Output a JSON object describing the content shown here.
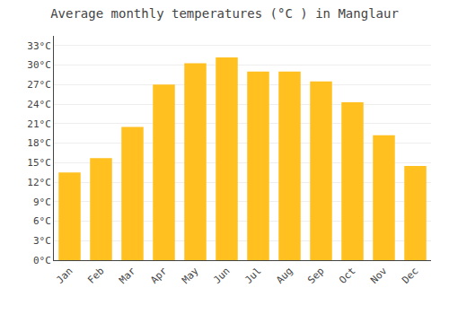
{
  "chart_data": {
    "type": "bar",
    "title": "Average monthly temperatures (°C ) in Manglaur",
    "categories": [
      "Jan",
      "Feb",
      "Mar",
      "Apr",
      "May",
      "Jun",
      "Jul",
      "Aug",
      "Sep",
      "Oct",
      "Nov",
      "Dec"
    ],
    "values": [
      13.5,
      15.7,
      20.5,
      27.0,
      30.3,
      31.2,
      29.0,
      29.0,
      27.5,
      24.3,
      19.2,
      14.5
    ],
    "color": "#FFC020",
    "ylim": [
      0,
      34.5
    ],
    "yticks": [
      {
        "value": 0,
        "label": "0°C"
      },
      {
        "value": 3,
        "label": "3°C"
      },
      {
        "value": 6,
        "label": "6°C"
      },
      {
        "value": 9,
        "label": "9°C"
      },
      {
        "value": 12,
        "label": "12°C"
      },
      {
        "value": 15,
        "label": "15°C"
      },
      {
        "value": 18,
        "label": "18°C"
      },
      {
        "value": 21,
        "label": "21°C"
      },
      {
        "value": 24,
        "label": "24°C"
      },
      {
        "value": 27,
        "label": "27°C"
      },
      {
        "value": 30,
        "label": "30°C"
      },
      {
        "value": 33,
        "label": "33°C"
      }
    ],
    "grid": true
  }
}
